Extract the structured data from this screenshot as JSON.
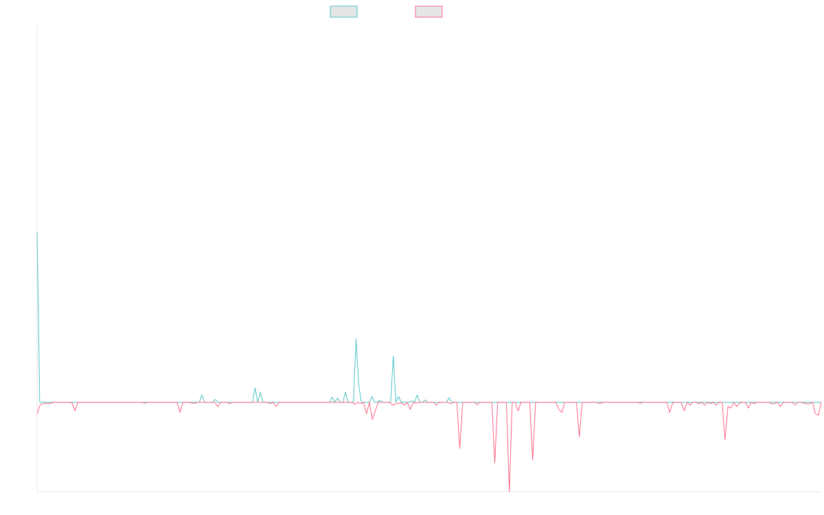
{
  "chart_data": {
    "type": "line",
    "title": "",
    "xlabel": "",
    "ylabel": "",
    "grid": false,
    "legend": "top-center",
    "ylim": [
      -31,
      131
    ],
    "series": [
      {
        "name": "",
        "color": "#4bc0c0",
        "fill": "#e6e6e6",
        "values": [
          59,
          0,
          0,
          0,
          0,
          0,
          0,
          0,
          0,
          0,
          0,
          0,
          0,
          0,
          0,
          0,
          0,
          0,
          0,
          0,
          0,
          0,
          0,
          0,
          0,
          0,
          0,
          0,
          0,
          0,
          0,
          0,
          0,
          0,
          0,
          0,
          0,
          0,
          0,
          0,
          0,
          0,
          0,
          0,
          0,
          0,
          0,
          0,
          0,
          0,
          0,
          0,
          0,
          0,
          0,
          0,
          0,
          0,
          0,
          0,
          0,
          0,
          2.5,
          0,
          0,
          0,
          0,
          1,
          0,
          0,
          0,
          0,
          0,
          0,
          0,
          0,
          0,
          0,
          0,
          0,
          0,
          0,
          5,
          0,
          3.5,
          0,
          0,
          0,
          0,
          0,
          0,
          0,
          0,
          0,
          0,
          0,
          0,
          0,
          0,
          0,
          0,
          0,
          0,
          0,
          0,
          0,
          0,
          0,
          0,
          0,
          0,
          1.8,
          0,
          1.5,
          0,
          0,
          3.5,
          0,
          0,
          0,
          22,
          6,
          0,
          0,
          0,
          0,
          2,
          0,
          0,
          0.7,
          0,
          0,
          0,
          0,
          16,
          0,
          2,
          0,
          0,
          0,
          0,
          0.5,
          0,
          2.5,
          0,
          0,
          0.8,
          0,
          0,
          0,
          0,
          0,
          0,
          0,
          0,
          1.6,
          0,
          0,
          0,
          0,
          0,
          0,
          0,
          0,
          0,
          0,
          0,
          0,
          0,
          0,
          0,
          0,
          0,
          0,
          0,
          0,
          0,
          0,
          0,
          0,
          0,
          0,
          0,
          0,
          0,
          0,
          0,
          0,
          0,
          0,
          0,
          0,
          0,
          0,
          0,
          0,
          0,
          0,
          0,
          0,
          0,
          0,
          0,
          0,
          0,
          0,
          0,
          0,
          0,
          0,
          0,
          0,
          0,
          0,
          0,
          0,
          0,
          0,
          0,
          0,
          0,
          0,
          0,
          0,
          0,
          0,
          0,
          0,
          0,
          0,
          0,
          0,
          0,
          0,
          0,
          0,
          0,
          0,
          0,
          0,
          0,
          0,
          0,
          0,
          0,
          0,
          0,
          0,
          0,
          0,
          0,
          0,
          0,
          0,
          0,
          0,
          0,
          0,
          0,
          0,
          0,
          0,
          0,
          0,
          0,
          0,
          0,
          0,
          0,
          0,
          0,
          0,
          0,
          0,
          0,
          0,
          0,
          0,
          0,
          0,
          0,
          0,
          0,
          0,
          0,
          0,
          0,
          0,
          0,
          0,
          0,
          0,
          0,
          0,
          0,
          0
        ]
      },
      {
        "name": "",
        "color": "#ff6384",
        "fill": "#e6e6e6",
        "values": [
          -4,
          -1,
          -0.5,
          -0.3,
          -0.5,
          -0.2,
          0,
          0,
          0,
          0,
          0,
          0,
          -0.2,
          -3,
          0,
          0,
          0,
          0,
          0,
          0,
          0,
          0,
          0,
          0,
          0,
          0,
          0,
          0,
          0,
          0,
          0,
          0,
          0,
          0,
          0,
          0,
          0,
          -0.3,
          0,
          0,
          0,
          0,
          0,
          0,
          0,
          0,
          0,
          0,
          0,
          -3.5,
          0,
          0,
          0,
          -0.2,
          -0.4,
          0,
          0,
          0,
          0,
          0,
          0,
          0,
          -1.5,
          0,
          0,
          0,
          -0.5,
          0,
          0,
          0,
          0,
          0,
          0,
          0,
          0,
          0,
          0,
          0,
          0,
          0,
          -0.5,
          0,
          -1.5,
          0,
          0,
          0,
          0,
          0,
          0,
          0,
          0,
          0,
          0,
          0,
          0,
          0,
          0,
          0,
          0,
          0,
          0,
          0,
          0,
          0,
          0,
          0,
          0,
          0,
          0,
          -0.7,
          0,
          -0.5,
          0,
          -4,
          0,
          -6,
          -3,
          0,
          0,
          0,
          0,
          0,
          -1,
          -0.5,
          -0.3,
          -0.2,
          -1,
          0,
          -2.5,
          0,
          -0.3,
          0,
          0,
          0,
          0,
          0,
          0,
          -1,
          0,
          0,
          0,
          0,
          -0.5,
          0,
          0,
          -16,
          0,
          0,
          0,
          0,
          0,
          -0.8,
          0,
          0,
          0,
          0,
          0,
          -21,
          0,
          0,
          0,
          0,
          -31,
          0,
          0,
          -3,
          0,
          0,
          0,
          0,
          -20,
          0,
          0,
          0,
          0,
          0,
          0,
          0,
          0,
          -2.5,
          -3.5,
          0,
          0,
          0,
          0,
          0,
          -12,
          0,
          0,
          0,
          0,
          0,
          0,
          -0.5,
          0,
          0,
          0,
          0,
          0,
          0,
          0,
          0,
          0,
          0,
          0,
          0,
          0,
          -0.3,
          0,
          0,
          0,
          0,
          0,
          0,
          0,
          0,
          0,
          -3.5,
          -0.3,
          0,
          0,
          0,
          -3,
          0,
          -1,
          0,
          0,
          -0.5,
          0,
          -1,
          0,
          -0.5,
          0,
          -1,
          0,
          0,
          -13,
          -1.5,
          -2,
          0,
          -1.5,
          -0.3,
          0,
          0,
          -2,
          0,
          -0.5,
          0,
          0,
          0,
          0,
          0,
          -0.5,
          -0.5,
          0,
          -1.5,
          0,
          0,
          0,
          0,
          -1,
          0,
          0,
          -0.3,
          -0.5,
          -0.5,
          0,
          -4,
          -4.5,
          0
        ]
      }
    ]
  }
}
